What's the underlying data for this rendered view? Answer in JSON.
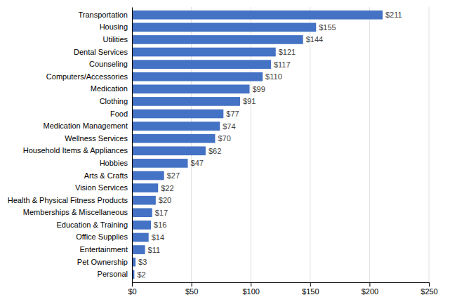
{
  "chart_data": {
    "type": "bar",
    "orientation": "horizontal",
    "categories": [
      "Transportation",
      "Housing",
      "Utilities",
      "Dental Services",
      "Counseling",
      "Computers/Accessories",
      "Medication",
      "Clothing",
      "Food",
      "Medication Management",
      "Wellness Services",
      "Household Items & Appliances",
      "Hobbies",
      "Arts & Crafts",
      "Vision Services",
      "Health & Physical Fitness Products",
      "Memberships & Miscellaneous",
      "Education & Training",
      "Office Supplies",
      "Entertainment",
      "Pet Ownership",
      "Personal"
    ],
    "values": [
      211,
      155,
      144,
      121,
      117,
      110,
      99,
      91,
      77,
      74,
      70,
      62,
      47,
      27,
      22,
      20,
      17,
      16,
      14,
      11,
      3,
      2
    ],
    "value_labels": [
      "$211",
      "$155",
      "$144",
      "$121",
      "$117",
      "$110",
      "$99",
      "$91",
      "$77",
      "$74",
      "$70",
      "$62",
      "$47",
      "$27",
      "$22",
      "$20",
      "$17",
      "$16",
      "$14",
      "$11",
      "$3",
      "$2"
    ],
    "data_labels": true,
    "color": "#4472C4",
    "xlim": [
      0,
      250
    ],
    "xticks": [
      {
        "value": 0,
        "label": "$0"
      },
      {
        "value": 50,
        "label": "$50"
      },
      {
        "value": 100,
        "label": "$100"
      },
      {
        "value": 150,
        "label": "$150"
      },
      {
        "value": 200,
        "label": "$200"
      },
      {
        "value": 250,
        "label": "$250"
      }
    ],
    "grid": true
  }
}
